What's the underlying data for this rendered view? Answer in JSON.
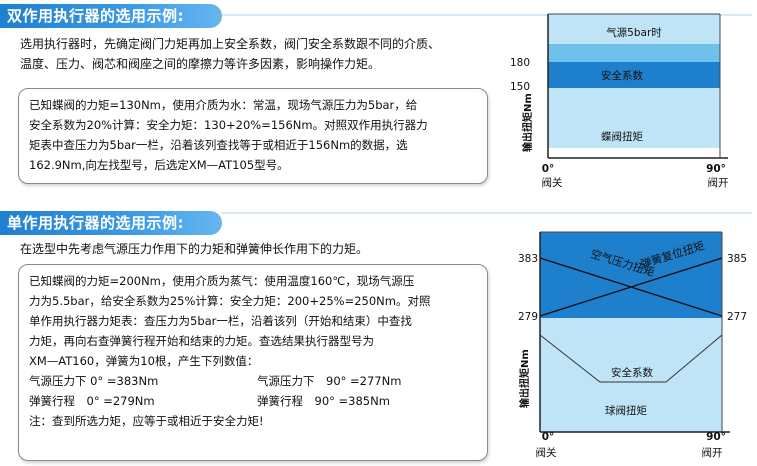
{
  "section1": {
    "title": "双作用执行器的选用示例:",
    "intro": [
      "选用执行器时，先确定阀门力矩再加上安全系数，阀门安全系数跟不同的介质、",
      "温度、压力、阀芯和阀座之间的摩擦力等许多因素，影响操作力矩。"
    ],
    "example": [
      "已知蝶阀的力矩=130Nm，使用介质为水：常温，现场气源压力为5bar，给",
      "安全系数为20%计算：安全力矩：130+20%=156Nm。对照双作用执行器力",
      "矩表中查压力为5bar一栏，沿着该列查找等于或相近于156Nm的数据，选",
      "162.9Nm,向左找型号，后选定XM—AT105型号。"
    ],
    "chart": {
      "band_top": "气源5bar时",
      "band_mid": "安全系数",
      "band_bottom": "蝶阀扭矩",
      "y_tick_180": "180",
      "y_tick_150": "150",
      "ylabel": "输出扭矩Nm",
      "x_start": "0°",
      "x_end": "90°",
      "x_start_label": "阀关",
      "x_end_label": "阀开",
      "color_light": "#bfe4f7",
      "color_mid": "#6fc1ec",
      "color_dark": "#1e7fcc"
    }
  },
  "section2": {
    "title": "单作用执行器的选用示例:",
    "intro": "在选型中先考虑气源压力作用下的力矩和弹簧伸长作用下的力矩。",
    "example": [
      "已知蝶阀的力矩=200Nm，使用介质为蒸气：使用温度160℃，现场气源压",
      "力为5.5bar，给安全系数为25%计算：安全力矩：200+25%=250Nm。对照",
      "单作用执行器力矩表：查压力为5bar一栏，沿着该列（开始和结束）中查找",
      "力矩，再向右查弹簧行程开始和结束的力矩。查选结果执行器型号为",
      "XM—AT160，弹簧为10根，产生下列数值："
    ],
    "values": [
      "气源压力下 0° =383Nm",
      "气源压力下　90° =277Nm",
      "弹簧行程　0° =279Nm",
      "弹簧行程　90° =385Nm"
    ],
    "note": "注：查到所选力矩，应等于或相近于安全力矩!",
    "chart": {
      "label_air": "空气压力扭矩",
      "label_spring": "弹簧复位扭矩",
      "band_safety": "安全系数",
      "band_ball": "球阀扭矩",
      "left_383": "383",
      "left_279": "279",
      "right_385": "385",
      "right_277": "277",
      "ylabel": "输出扭矩Nm",
      "x_start": "0°",
      "x_end": "90°",
      "x_start_label": "阀关",
      "x_end_label": "阀开",
      "color_light": "#bfe4f7",
      "color_dark": "#1e7fcc"
    }
  }
}
